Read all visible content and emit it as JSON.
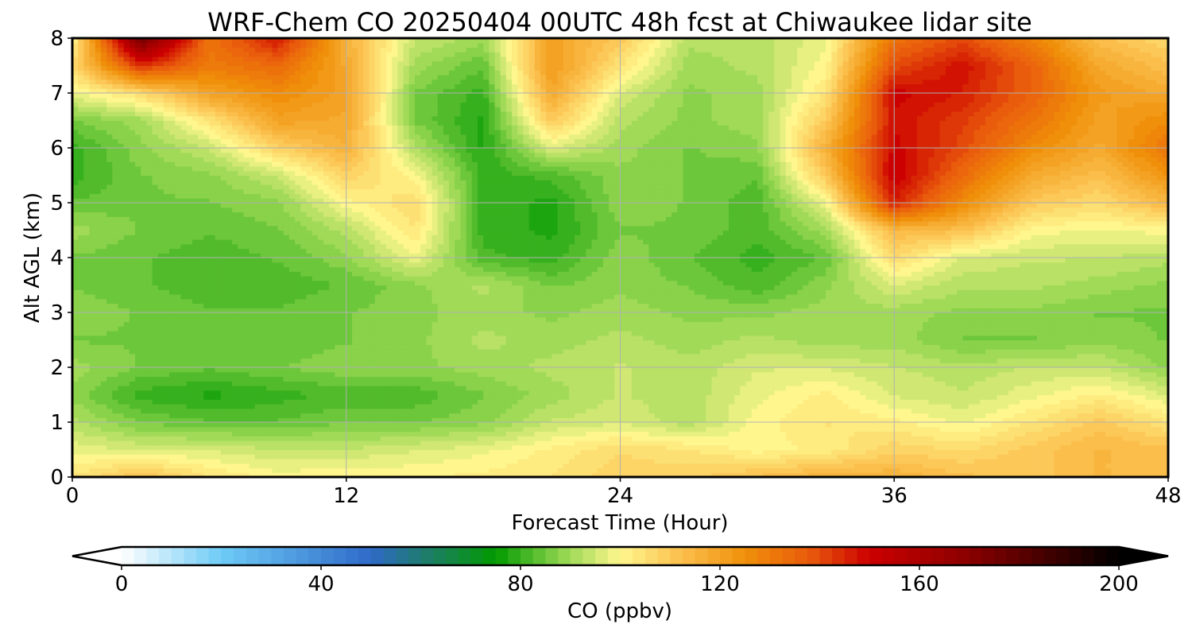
{
  "chart_data": {
    "type": "heatmap",
    "title": "WRF-Chem CO  20250404 00UTC 48h fcst at Chiwaukee lidar site",
    "xlabel": "Forecast Time (Hour)",
    "ylabel": "Alt AGL (km)",
    "xlim": [
      0,
      48
    ],
    "ylim": [
      0,
      8
    ],
    "x_ticks": [
      "0",
      "12",
      "24",
      "36",
      "48"
    ],
    "y_ticks": [
      "0",
      "1",
      "2",
      "3",
      "4",
      "5",
      "6",
      "7",
      "8"
    ],
    "grid": true,
    "x": [
      0,
      3,
      6,
      9,
      12,
      15,
      18,
      21,
      24,
      27,
      30,
      33,
      36,
      39,
      42,
      45,
      48
    ],
    "y": [
      0,
      0.5,
      1,
      1.5,
      2,
      2.5,
      3,
      3.5,
      4,
      4.5,
      5,
      5.5,
      6,
      6.5,
      7,
      7.5,
      8
    ],
    "z": [
      [
        104,
        112,
        104,
        100,
        101,
        101,
        102,
        104,
        108,
        108,
        112,
        116,
        116,
        112,
        110,
        114,
        112
      ],
      [
        98,
        96,
        96,
        94,
        94,
        96,
        98,
        102,
        106,
        104,
        100,
        102,
        108,
        106,
        110,
        114,
        112
      ],
      [
        92,
        86,
        84,
        84,
        86,
        86,
        88,
        94,
        96,
        92,
        100,
        104,
        102,
        98,
        104,
        110,
        104
      ],
      [
        88,
        80,
        78,
        80,
        82,
        82,
        86,
        90,
        94,
        92,
        98,
        102,
        96,
        94,
        98,
        102,
        96
      ],
      [
        90,
        86,
        84,
        86,
        88,
        88,
        90,
        92,
        94,
        92,
        96,
        96,
        94,
        92,
        94,
        94,
        88
      ],
      [
        86,
        86,
        86,
        84,
        86,
        88,
        92,
        90,
        92,
        90,
        92,
        90,
        90,
        86,
        86,
        88,
        86
      ],
      [
        88,
        86,
        84,
        84,
        86,
        88,
        90,
        88,
        90,
        88,
        88,
        90,
        90,
        88,
        88,
        86,
        86
      ],
      [
        86,
        84,
        82,
        82,
        84,
        88,
        92,
        86,
        88,
        86,
        82,
        88,
        96,
        92,
        92,
        90,
        88
      ],
      [
        86,
        84,
        82,
        84,
        88,
        98,
        82,
        80,
        88,
        84,
        80,
        84,
        106,
        96,
        94,
        94,
        92
      ],
      [
        90,
        86,
        84,
        86,
        92,
        104,
        80,
        78,
        86,
        86,
        82,
        90,
        114,
        112,
        100,
        98,
        100
      ],
      [
        84,
        86,
        86,
        88,
        100,
        106,
        80,
        78,
        88,
        86,
        82,
        98,
        146,
        126,
        110,
        106,
        114
      ],
      [
        80,
        86,
        88,
        94,
        108,
        100,
        80,
        82,
        88,
        86,
        84,
        110,
        152,
        134,
        118,
        112,
        124
      ],
      [
        80,
        88,
        94,
        108,
        116,
        92,
        78,
        96,
        90,
        86,
        88,
        116,
        150,
        140,
        126,
        118,
        132
      ],
      [
        86,
        90,
        104,
        120,
        118,
        86,
        78,
        110,
        92,
        88,
        90,
        110,
        148,
        142,
        132,
        120,
        126
      ],
      [
        98,
        106,
        120,
        126,
        120,
        86,
        80,
        118,
        96,
        88,
        90,
        104,
        150,
        146,
        136,
        122,
        118
      ],
      [
        106,
        144,
        130,
        134,
        118,
        90,
        84,
        122,
        104,
        90,
        92,
        100,
        140,
        148,
        136,
        118,
        112
      ],
      [
        100,
        176,
        132,
        148,
        116,
        94,
        90,
        120,
        110,
        92,
        92,
        98,
        132,
        140,
        128,
        112,
        106
      ]
    ],
    "colorbar": {
      "label": "CO  (ppbv)",
      "min": 0,
      "max": 200,
      "ticks": [
        "0",
        "40",
        "80",
        "120",
        "160",
        "200"
      ],
      "extend": "both",
      "stops": [
        {
          "v": 0,
          "c": "#ffffff"
        },
        {
          "v": 20,
          "c": "#6ecbf6"
        },
        {
          "v": 50,
          "c": "#2f6ac8"
        },
        {
          "v": 60,
          "c": "#1f7a72"
        },
        {
          "v": 75,
          "c": "#019a01"
        },
        {
          "v": 88,
          "c": "#8ed44c"
        },
        {
          "v": 100,
          "c": "#fff78e"
        },
        {
          "v": 112,
          "c": "#fbc04e"
        },
        {
          "v": 125,
          "c": "#f0900a"
        },
        {
          "v": 138,
          "c": "#e95a0c"
        },
        {
          "v": 150,
          "c": "#cc0000"
        },
        {
          "v": 170,
          "c": "#8a0000"
        },
        {
          "v": 200,
          "c": "#000000"
        }
      ]
    }
  }
}
